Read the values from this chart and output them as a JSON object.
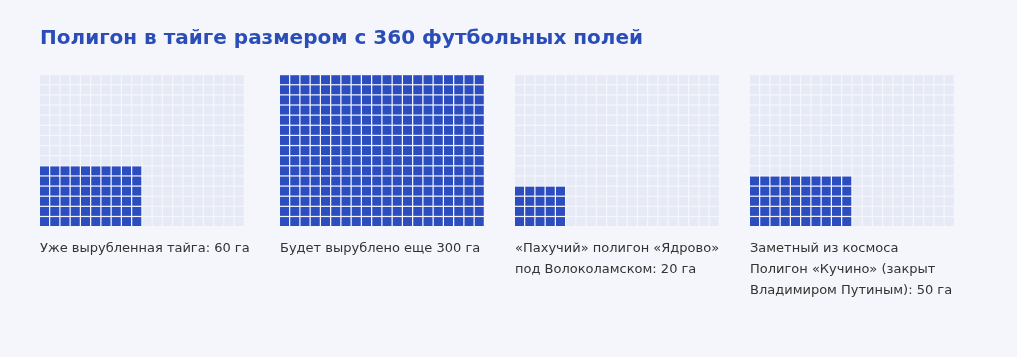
{
  "chart_data": {
    "type": "other",
    "title": "Полигон в тайге размером с 360 футбольных полей",
    "categories": [
      "Уже вырубленная тайга",
      "Будет вырублено еще",
      "«Пахучий» полигон «Ядрово» под Волоколамском",
      "Заметный из космоса Полигон «Кучино» (закрыт Владимиром Путиным)"
    ],
    "values": [
      60,
      300,
      20,
      50
    ],
    "value_labels": [
      ": 60 га",
      "300 га",
      ": 20 га",
      ": 50 га"
    ],
    "color": "#2b4dc0"
  }
}
